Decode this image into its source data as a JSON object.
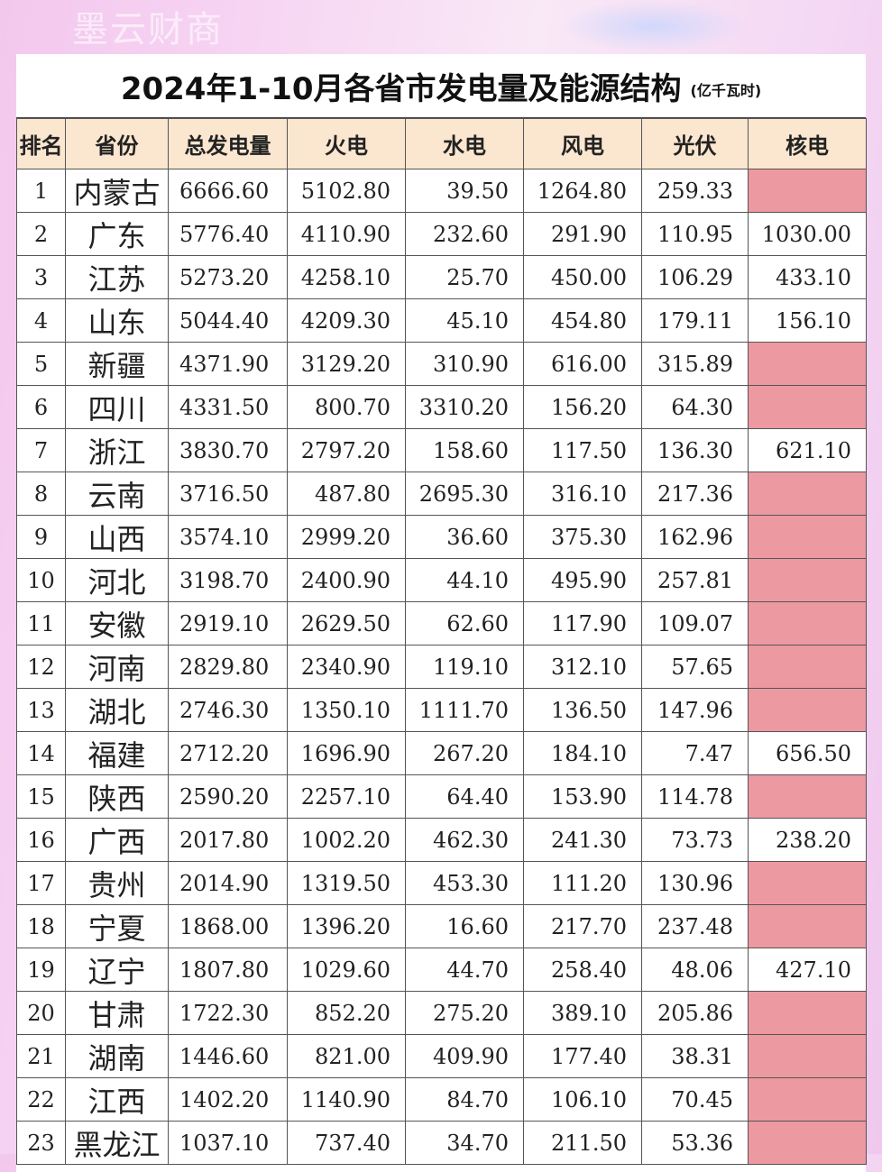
{
  "watermark": "墨云财商",
  "title": {
    "main": "2024年1-10月各省市发电量及能源结构",
    "unit": "(亿千瓦时)"
  },
  "headers": [
    "排名",
    "省份",
    "总发电量",
    "火电",
    "水电",
    "风电",
    "光伏",
    "核电"
  ],
  "rows": [
    [
      "1",
      "内蒙古",
      "6666.60",
      "5102.80",
      "39.50",
      "1264.80",
      "259.33",
      ""
    ],
    [
      "2",
      "广东",
      "5776.40",
      "4110.90",
      "232.60",
      "291.90",
      "110.95",
      "1030.00"
    ],
    [
      "3",
      "江苏",
      "5273.20",
      "4258.10",
      "25.70",
      "450.00",
      "106.29",
      "433.10"
    ],
    [
      "4",
      "山东",
      "5044.40",
      "4209.30",
      "45.10",
      "454.80",
      "179.11",
      "156.10"
    ],
    [
      "5",
      "新疆",
      "4371.90",
      "3129.20",
      "310.90",
      "616.00",
      "315.89",
      ""
    ],
    [
      "6",
      "四川",
      "4331.50",
      "800.70",
      "3310.20",
      "156.20",
      "64.30",
      ""
    ],
    [
      "7",
      "浙江",
      "3830.70",
      "2797.20",
      "158.60",
      "117.50",
      "136.30",
      "621.10"
    ],
    [
      "8",
      "云南",
      "3716.50",
      "487.80",
      "2695.30",
      "316.10",
      "217.36",
      ""
    ],
    [
      "9",
      "山西",
      "3574.10",
      "2999.20",
      "36.60",
      "375.30",
      "162.96",
      ""
    ],
    [
      "10",
      "河北",
      "3198.70",
      "2400.90",
      "44.10",
      "495.90",
      "257.81",
      ""
    ],
    [
      "11",
      "安徽",
      "2919.10",
      "2629.50",
      "62.60",
      "117.90",
      "109.07",
      ""
    ],
    [
      "12",
      "河南",
      "2829.80",
      "2340.90",
      "119.10",
      "312.10",
      "57.65",
      ""
    ],
    [
      "13",
      "湖北",
      "2746.30",
      "1350.10",
      "1111.70",
      "136.50",
      "147.96",
      ""
    ],
    [
      "14",
      "福建",
      "2712.20",
      "1696.90",
      "267.20",
      "184.10",
      "7.47",
      "656.50"
    ],
    [
      "15",
      "陕西",
      "2590.20",
      "2257.10",
      "64.40",
      "153.90",
      "114.78",
      ""
    ],
    [
      "16",
      "广西",
      "2017.80",
      "1002.20",
      "462.30",
      "241.30",
      "73.73",
      "238.20"
    ],
    [
      "17",
      "贵州",
      "2014.90",
      "1319.50",
      "453.30",
      "111.20",
      "130.96",
      ""
    ],
    [
      "18",
      "宁夏",
      "1868.00",
      "1396.20",
      "16.60",
      "217.70",
      "237.48",
      ""
    ],
    [
      "19",
      "辽宁",
      "1807.80",
      "1029.60",
      "44.70",
      "258.40",
      "48.06",
      "427.10"
    ],
    [
      "20",
      "甘肃",
      "1722.30",
      "852.20",
      "275.20",
      "389.10",
      "205.86",
      ""
    ],
    [
      "21",
      "湖南",
      "1446.60",
      "821.00",
      "409.90",
      "177.40",
      "38.31",
      ""
    ],
    [
      "22",
      "江西",
      "1402.20",
      "1140.90",
      "84.70",
      "106.10",
      "70.45",
      ""
    ],
    [
      "23",
      "黑龙江",
      "1037.10",
      "737.40",
      "34.70",
      "211.50",
      "53.36",
      ""
    ]
  ],
  "colors": {
    "header_bg": "#fbe6cf",
    "no_nuclear_bg": "#ec99a2"
  }
}
